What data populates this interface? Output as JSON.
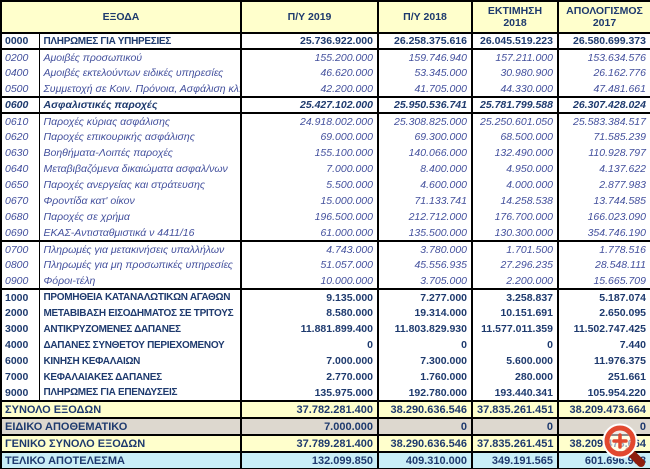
{
  "table": {
    "header": {
      "expenses": "ΕΞΟΔΑ",
      "col1": "Π/Υ 2019",
      "col2": "Π/Υ 2018",
      "col3": "ΕΚΤΙΜΗΣΗ 2018",
      "col4": "ΑΠΟΛΟΓΙΣΜΟΣ 2017"
    },
    "rows": [
      {
        "code": "0000",
        "label": "ΠΛΗΡΩΜΕΣ ΓΙΑ ΥΠΗΡΕΣΙΕΣ",
        "style": "major",
        "grp": true,
        "values": [
          "25.736.922.000",
          "26.258.375.616",
          "26.045.519.223",
          "26.580.699.373"
        ]
      },
      {
        "code": "0200",
        "label": "Αμοιβές προσωπικού",
        "style": "detail",
        "grp": true,
        "values": [
          "155.200.000",
          "159.746.940",
          "157.211.000",
          "153.634.576"
        ]
      },
      {
        "code": "0400",
        "label": "Αμοιβές εκτελούντων ειδικές υπηρεσίες",
        "style": "detail",
        "grp": false,
        "values": [
          "46.620.000",
          "53.345.000",
          "30.980.900",
          "26.162.776"
        ]
      },
      {
        "code": "0500",
        "label": "Συμμετοχή σε Κοιν. Πρόνοια, Ασφάλιση κλπ",
        "style": "detail",
        "grp": false,
        "values": [
          "42.200.000",
          "41.705.000",
          "44.330.000",
          "47.481.661"
        ]
      },
      {
        "code": "0600",
        "label": "Ασφαλιστικές παροχές",
        "style": "major-italic",
        "grp": true,
        "values": [
          "25.427.102.000",
          "25.950.536.741",
          "25.781.799.588",
          "26.307.428.024"
        ]
      },
      {
        "code": "0610",
        "label": "Παροχές κύριας ασφάλισης",
        "style": "detail",
        "grp": true,
        "values": [
          "24.918.002.000",
          "25.308.825.000",
          "25.250.601.050",
          "25.583.384.517"
        ]
      },
      {
        "code": "0620",
        "label": "Παροχές επικουρικής ασφάλισης",
        "style": "detail",
        "grp": false,
        "values": [
          "69.000.000",
          "69.300.000",
          "68.500.000",
          "71.585.239"
        ]
      },
      {
        "code": "0630",
        "label": "Βοηθήματα-Λοιπές παροχές",
        "style": "detail",
        "grp": false,
        "values": [
          "155.100.000",
          "140.066.000",
          "132.490.000",
          "110.928.797"
        ]
      },
      {
        "code": "0640",
        "label": "Μεταβιβαζόμενα δικαιώματα ασφαλ/νων",
        "style": "detail",
        "grp": false,
        "values": [
          "7.000.000",
          "8.400.000",
          "4.950.000",
          "4.137.622"
        ]
      },
      {
        "code": "0650",
        "label": "Παροχές ανεργείας και στράτευσης",
        "style": "detail",
        "grp": false,
        "values": [
          "5.500.000",
          "4.600.000",
          "4.000.000",
          "2.877.983"
        ]
      },
      {
        "code": "0670",
        "label": "Φροντίδα κατ' οίκον",
        "style": "detail",
        "grp": false,
        "values": [
          "15.000.000",
          "71.133.741",
          "14.258.538",
          "13.744.585"
        ]
      },
      {
        "code": "0680",
        "label": "Παροχές σε χρήμα",
        "style": "detail",
        "grp": false,
        "values": [
          "196.500.000",
          "212.712.000",
          "176.700.000",
          "166.023.090"
        ]
      },
      {
        "code": "0690",
        "label": "ΕΚΑΣ-Αντισταθμιστικά ν 4411/16",
        "style": "detail",
        "grp": false,
        "values": [
          "61.000.000",
          "135.500.000",
          "130.300.000",
          "354.746.190"
        ]
      },
      {
        "code": "0700",
        "label": "Πληρωμές για μετακινήσεις υπαλλήλων",
        "style": "detail",
        "grp": true,
        "values": [
          "4.743.000",
          "3.780.000",
          "1.701.500",
          "1.778.516"
        ]
      },
      {
        "code": "0800",
        "label": "Πληρωμές για μη προσωπικές υπηρεσίες",
        "style": "detail",
        "grp": false,
        "values": [
          "51.057.000",
          "45.556.935",
          "27.296.235",
          "28.548.111"
        ]
      },
      {
        "code": "0900",
        "label": "Φόροι-τέλη",
        "style": "detail",
        "grp": false,
        "values": [
          "10.000.000",
          "3.705.000",
          "2.200.000",
          "15.665.709"
        ]
      },
      {
        "code": "1000",
        "label": "ΠΡΟΜΗΘΕΙΑ ΚΑΤΑΝΑΛΩΤΙΚΩΝ ΑΓΑΘΩΝ",
        "style": "major",
        "grp": true,
        "values": [
          "9.135.000",
          "7.277.000",
          "3.258.837",
          "5.187.074"
        ]
      },
      {
        "code": "2000",
        "label": "ΜΕΤΑΒΙΒΑΣΗ ΕΙΣΟΔΗΜΑΤΟΣ ΣΕ ΤΡΙΤΟΥΣ",
        "style": "major",
        "grp": false,
        "values": [
          "8.580.000",
          "19.314.000",
          "10.151.691",
          "2.650.095"
        ]
      },
      {
        "code": "3000",
        "label": "ΑΝΤΙΚΡΥΖΟΜΕΝΕΣ ΔΑΠΑΝΕΣ",
        "style": "major",
        "grp": false,
        "values": [
          "11.881.899.400",
          "11.803.829.930",
          "11.577.011.359",
          "11.502.747.425"
        ]
      },
      {
        "code": "4000",
        "label": "ΔΑΠΑΝΕΣ ΣΥΝΘΕΤΟΥ ΠΕΡΙΕΧΟΜΕΝΟΥ",
        "style": "major",
        "grp": false,
        "values": [
          "0",
          "0",
          "0",
          "7.440"
        ]
      },
      {
        "code": "6000",
        "label": "ΚΙΝΗΣΗ ΚΕΦΑΛΑΙΩΝ",
        "style": "major",
        "grp": false,
        "values": [
          "7.000.000",
          "7.300.000",
          "5.600.000",
          "11.976.375"
        ]
      },
      {
        "code": "7000",
        "label": "ΚΕΦΑΛΑΙΑΚΕΣ ΔΑΠΑΝΕΣ",
        "style": "major",
        "grp": false,
        "values": [
          "2.770.000",
          "1.760.000",
          "280.000",
          "251.661"
        ]
      },
      {
        "code": "9000",
        "label": "ΠΛΗΡΩΜΕΣ ΓΙΑ ΕΠΕΝΔΥΣΕΙΣ",
        "style": "major",
        "grp": false,
        "values": [
          "135.975.000",
          "192.780.000",
          "193.440.341",
          "105.954.220"
        ]
      }
    ],
    "summary": [
      {
        "label": "ΣΥΝΟΛΟ ΕΞΟΔΩΝ",
        "style": "total",
        "values": [
          "37.782.281.400",
          "38.290.636.546",
          "37.835.261.451",
          "38.209.473.664"
        ]
      },
      {
        "label": "ΕΙΔΙΚΟ ΑΠΟΘΕΜΑΤΙΚΟ",
        "style": "reserve",
        "values": [
          "7.000.000",
          "0",
          "0",
          "0"
        ]
      },
      {
        "label": "ΓΕΝΙΚΟ ΣΥΝΟΛΟ ΕΞΟΔΩΝ",
        "style": "total",
        "values": [
          "37.789.281.400",
          "38.290.636.546",
          "37.835.261.451",
          "38.209.473.664"
        ]
      },
      {
        "label": "ΤΕΛΙΚΟ ΑΠΟΤΕΛΕΣΜΑ",
        "style": "final",
        "values": [
          "132.099.850",
          "409.310.000",
          "349.191.565",
          "601.696.968"
        ]
      }
    ]
  },
  "colors": {
    "text_navy": "#1e3a6e",
    "text_detail": "#43509d",
    "header_bg": "#ffffcc",
    "total_bg": "#ffffcc",
    "reserve_bg": "#ddd8cf",
    "final_bg": "#c9eef7",
    "border": "#000000",
    "magnifier_ring": "#e2492f",
    "magnifier_handle": "#8f1e0e"
  },
  "overlay": {
    "magnifier_icon": "zoom-plus-icon"
  }
}
